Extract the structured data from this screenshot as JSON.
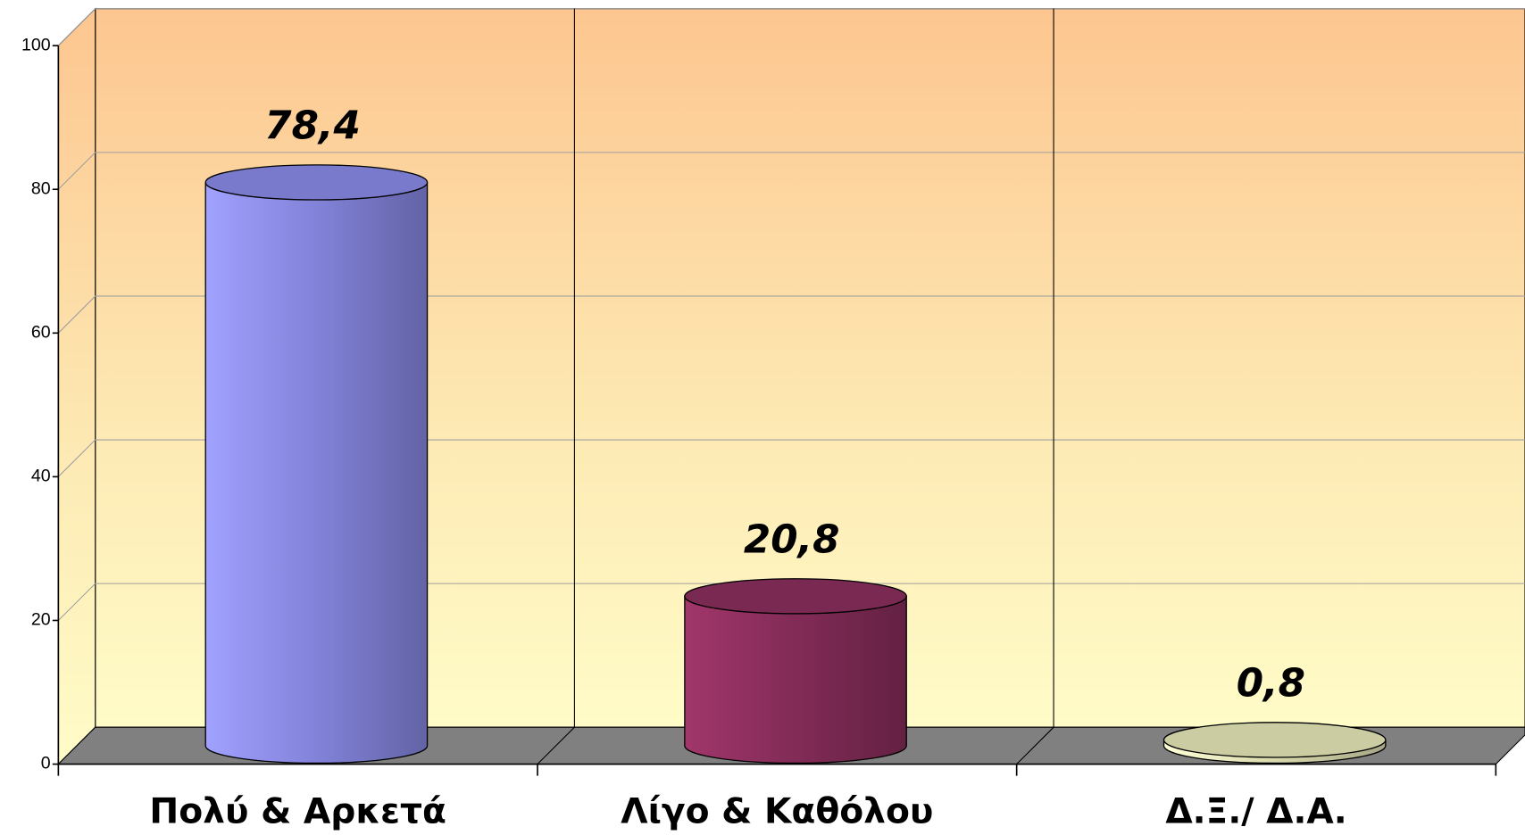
{
  "chart_data": {
    "type": "bar",
    "categories": [
      "Πολύ & Αρκετά",
      "Λίγο & Καθόλου",
      "Δ.Ξ./ Δ.Α."
    ],
    "values": [
      78.4,
      20.8,
      0.8
    ],
    "value_labels": [
      "78,4",
      "20,8",
      "0,8"
    ],
    "colors": [
      "#9999ff",
      "#993366",
      "#ffffcc"
    ],
    "ylim": [
      0,
      100
    ],
    "yticks": [
      0,
      20,
      40,
      60,
      80,
      100
    ],
    "grid": true
  }
}
